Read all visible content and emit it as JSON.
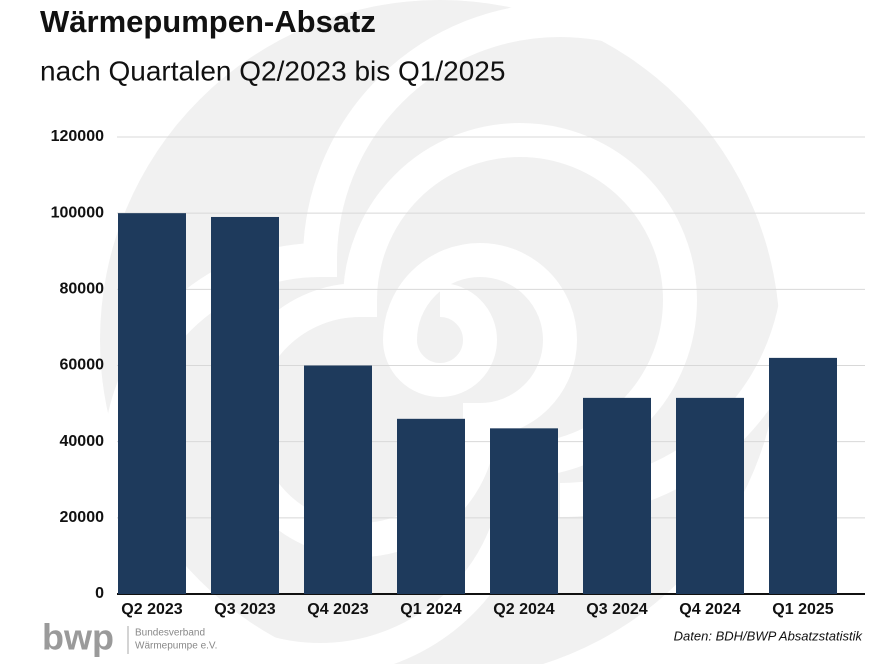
{
  "chart_data": {
    "type": "bar",
    "title": "Wärmepumpen-Absatz",
    "subtitle": "nach Quartalen Q2/2023 bis Q1/2025",
    "categories": [
      "Q2 2023",
      "Q3 2023",
      "Q4 2023",
      "Q1 2024",
      "Q2 2024",
      "Q3 2024",
      "Q4 2024",
      "Q1 2025"
    ],
    "values": [
      100000,
      99000,
      60000,
      46000,
      43500,
      51500,
      51500,
      62000
    ],
    "color": "#1e3a5c",
    "ylim": [
      0,
      120000
    ],
    "yticks": [
      0,
      20000,
      40000,
      60000,
      80000,
      100000,
      120000
    ],
    "grid": true,
    "source": "Daten: BDH/BWP Absatzstatistik",
    "logo": {
      "mark": "bwp",
      "line1": "Bundesverband",
      "line2": "Wärmepumpe e.V."
    }
  }
}
